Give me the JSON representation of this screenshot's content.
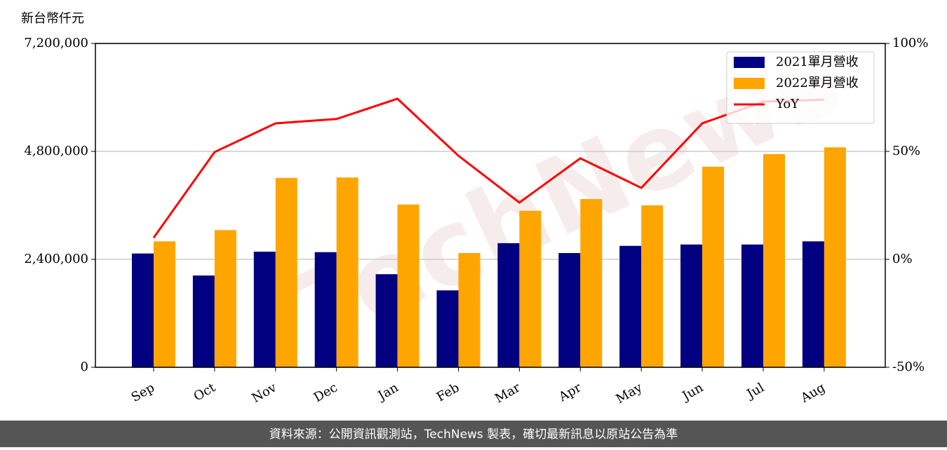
{
  "chart_data": {
    "type": "bar_line",
    "y_label": "新台幣仟元",
    "watermark": "TechNews",
    "footer": "資料來源：公開資訊觀測站，TechNews 製表，確切最新訊息以原站公告為準",
    "categories": [
      "Sep",
      "Oct",
      "Nov",
      "Dec",
      "Jan",
      "Feb",
      "Mar",
      "Apr",
      "May",
      "Jun",
      "Jul",
      "Aug"
    ],
    "series": [
      {
        "name": "2021單月營收",
        "color": "#000080",
        "values": [
          2530000,
          2040000,
          2570000,
          2560000,
          2070000,
          1710000,
          2760000,
          2540000,
          2700000,
          2730000,
          2730000,
          2800000
        ]
      },
      {
        "name": "2022單月營收",
        "color": "#ffa500",
        "values": [
          2800000,
          3050000,
          4210000,
          4220000,
          3620000,
          2540000,
          3480000,
          3740000,
          3600000,
          4460000,
          4740000,
          4890000
        ]
      },
      {
        "name": "YoY",
        "color": "#ff0000",
        "axis": "y2",
        "values": [
          10,
          49.7,
          63,
          65,
          74.4,
          48,
          26.3,
          46.8,
          33.1,
          63,
          73,
          74
        ]
      }
    ],
    "ylim": [
      0,
      7200000
    ],
    "yticks": [
      0,
      {
        "value": 2400000,
        "label": "2,400,000"
      },
      {
        "value": 4800000,
        "label": "4,800,000"
      },
      {
        "value": 7200000,
        "label": "7,200,000"
      }
    ],
    "y2lim": [
      -50,
      100
    ],
    "y2ticks": [
      {
        "value": -50,
        "label": "-50%"
      },
      {
        "value": 0,
        "label": "0%"
      },
      {
        "value": 50,
        "label": "50%"
      },
      {
        "value": 100,
        "label": "100%"
      }
    ],
    "grid": true,
    "legend": "upper right"
  }
}
